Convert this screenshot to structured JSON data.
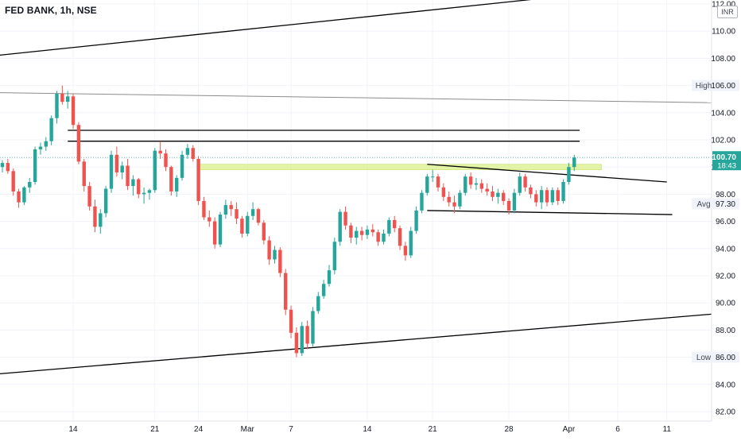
{
  "header": {
    "title": "FED BANK, 1h, NSE",
    "currency": "INR"
  },
  "colors": {
    "up": "#26a69a",
    "down": "#ef5350",
    "grid": "#f0f3fa",
    "trendline": "#000000",
    "upper_channel": "#8c8c8c",
    "zone_fill": "#d9f08a",
    "current_price_bg": "#26a69a",
    "axis_text": "#131722"
  },
  "chart_data": {
    "type": "candlestick",
    "title": "FED BANK, 1h, NSE",
    "ylim": [
      81.5,
      113.5
    ],
    "grid": true,
    "y_ticks": [
      "82.00",
      "84.00",
      "86.00",
      "88.00",
      "90.00",
      "92.00",
      "94.00",
      "96.00",
      "98.00",
      "100.00",
      "102.00",
      "104.00",
      "106.00",
      "108.00",
      "110.00",
      "112.00"
    ],
    "x_ticks": [
      "14",
      "21",
      "24",
      "Mar",
      "7",
      "14",
      "21",
      "28",
      "Apr",
      "6",
      "11"
    ],
    "x_tick_index": [
      13,
      28,
      36,
      45,
      53,
      67,
      79,
      93,
      104,
      113,
      122
    ],
    "labels": {
      "high": {
        "name": "High",
        "value": "106.00"
      },
      "avg": {
        "name": "Avg",
        "value": "97.30"
      },
      "low": {
        "name": "Low",
        "value": "86.00"
      },
      "current": {
        "value": "100.70",
        "countdown": "18:43"
      }
    },
    "candles": [
      [
        100.0,
        100.5,
        99.6,
        100.3
      ],
      [
        100.3,
        100.6,
        99.5,
        99.7
      ],
      [
        99.7,
        99.9,
        97.9,
        98.2
      ],
      [
        98.2,
        98.4,
        97.0,
        97.4
      ],
      [
        97.4,
        98.6,
        97.2,
        98.5
      ],
      [
        98.5,
        99.2,
        98.1,
        98.9
      ],
      [
        98.9,
        101.5,
        98.7,
        101.3
      ],
      [
        101.3,
        101.8,
        100.9,
        101.5
      ],
      [
        101.5,
        102.2,
        101.2,
        101.9
      ],
      [
        101.9,
        103.8,
        101.6,
        103.6
      ],
      [
        103.6,
        105.6,
        103.2,
        105.4
      ],
      [
        105.4,
        106.0,
        104.6,
        104.8
      ],
      [
        104.8,
        105.6,
        104.3,
        105.2
      ],
      [
        105.2,
        105.4,
        102.8,
        103.1
      ],
      [
        103.1,
        103.3,
        100.2,
        100.4
      ],
      [
        100.4,
        100.6,
        98.2,
        98.6
      ],
      [
        98.6,
        98.9,
        96.8,
        97.1
      ],
      [
        97.1,
        97.6,
        95.2,
        95.6
      ],
      [
        95.6,
        96.9,
        95.1,
        96.6
      ],
      [
        96.6,
        98.6,
        96.3,
        98.4
      ],
      [
        98.4,
        101.2,
        98.1,
        100.9
      ],
      [
        100.9,
        101.5,
        99.3,
        99.6
      ],
      [
        99.6,
        100.4,
        99.1,
        100.1
      ],
      [
        100.1,
        100.6,
        98.3,
        98.6
      ],
      [
        98.6,
        99.4,
        97.9,
        99.1
      ],
      [
        99.1,
        99.2,
        97.7,
        98.0
      ],
      [
        98.0,
        98.5,
        97.3,
        98.1
      ],
      [
        98.1,
        98.4,
        97.6,
        98.3
      ],
      [
        98.3,
        101.4,
        98.1,
        101.2
      ],
      [
        101.2,
        101.9,
        100.6,
        101.0
      ],
      [
        101.0,
        101.3,
        99.7,
        100.0
      ],
      [
        100.0,
        100.1,
        97.9,
        98.2
      ],
      [
        98.2,
        99.4,
        97.8,
        99.2
      ],
      [
        99.2,
        101.2,
        99.0,
        100.9
      ],
      [
        100.9,
        101.7,
        100.6,
        101.4
      ],
      [
        101.4,
        101.6,
        100.4,
        100.6
      ],
      [
        100.6,
        100.8,
        97.2,
        97.5
      ],
      [
        97.5,
        97.8,
        96.1,
        96.3
      ],
      [
        96.3,
        96.8,
        95.6,
        96.0
      ],
      [
        96.0,
        96.3,
        94.0,
        94.3
      ],
      [
        94.3,
        96.7,
        94.1,
        96.5
      ],
      [
        96.5,
        97.6,
        96.2,
        97.2
      ],
      [
        97.2,
        97.5,
        96.4,
        96.9
      ],
      [
        96.9,
        97.4,
        95.8,
        96.2
      ],
      [
        96.2,
        96.4,
        94.8,
        95.1
      ],
      [
        95.1,
        96.7,
        94.9,
        96.4
      ],
      [
        96.4,
        97.4,
        96.1,
        96.9
      ],
      [
        96.9,
        97.0,
        95.7,
        95.9
      ],
      [
        95.9,
        96.1,
        94.3,
        94.6
      ],
      [
        94.6,
        94.9,
        92.8,
        93.2
      ],
      [
        93.2,
        94.2,
        92.9,
        93.9
      ],
      [
        93.9,
        94.1,
        91.9,
        92.2
      ],
      [
        92.2,
        92.5,
        89.1,
        89.5
      ],
      [
        89.5,
        89.8,
        87.4,
        87.8
      ],
      [
        87.8,
        88.2,
        86.0,
        86.3
      ],
      [
        86.3,
        88.6,
        86.1,
        88.3
      ],
      [
        88.3,
        88.7,
        86.6,
        87.0
      ],
      [
        87.0,
        89.7,
        86.8,
        89.4
      ],
      [
        89.4,
        90.8,
        89.2,
        90.5
      ],
      [
        90.5,
        91.7,
        90.3,
        91.4
      ],
      [
        91.4,
        92.8,
        91.2,
        92.4
      ],
      [
        92.4,
        94.8,
        92.1,
        94.5
      ],
      [
        94.5,
        96.9,
        94.2,
        96.7
      ],
      [
        96.7,
        97.1,
        95.4,
        95.7
      ],
      [
        95.7,
        95.9,
        94.4,
        94.8
      ],
      [
        94.8,
        95.6,
        94.3,
        95.3
      ],
      [
        95.3,
        95.6,
        94.6,
        95.0
      ],
      [
        95.0,
        95.7,
        94.7,
        95.4
      ],
      [
        95.4,
        95.8,
        94.9,
        95.2
      ],
      [
        95.2,
        95.4,
        94.2,
        94.5
      ],
      [
        94.5,
        95.4,
        94.3,
        95.1
      ],
      [
        95.1,
        96.3,
        94.9,
        96.1
      ],
      [
        96.1,
        96.4,
        95.2,
        95.5
      ],
      [
        95.5,
        95.7,
        93.9,
        94.2
      ],
      [
        94.2,
        94.5,
        93.1,
        93.5
      ],
      [
        93.5,
        95.6,
        93.3,
        95.3
      ],
      [
        95.3,
        97.1,
        95.1,
        96.8
      ],
      [
        96.8,
        98.3,
        96.6,
        98.1
      ],
      [
        98.1,
        99.5,
        97.9,
        99.3
      ],
      [
        99.3,
        99.8,
        98.9,
        99.3
      ],
      [
        99.3,
        99.5,
        98.2,
        98.5
      ],
      [
        98.5,
        98.8,
        97.5,
        97.8
      ],
      [
        97.8,
        98.2,
        97.1,
        97.4
      ],
      [
        97.4,
        97.9,
        96.6,
        97.1
      ],
      [
        97.1,
        98.3,
        96.9,
        98.1
      ],
      [
        98.1,
        99.5,
        97.9,
        99.3
      ],
      [
        99.3,
        99.6,
        98.4,
        98.7
      ],
      [
        98.7,
        99.2,
        98.3,
        98.8
      ],
      [
        98.8,
        99.1,
        98.1,
        98.4
      ],
      [
        98.4,
        98.8,
        97.9,
        98.2
      ],
      [
        98.2,
        98.6,
        97.5,
        97.8
      ],
      [
        97.8,
        98.4,
        97.3,
        98.1
      ],
      [
        98.1,
        98.3,
        97.2,
        97.5
      ],
      [
        97.5,
        97.7,
        96.5,
        96.8
      ],
      [
        96.8,
        98.4,
        96.6,
        98.1
      ],
      [
        98.1,
        99.6,
        97.9,
        99.3
      ],
      [
        99.3,
        99.5,
        98.2,
        98.5
      ],
      [
        98.5,
        98.7,
        97.7,
        98.0
      ],
      [
        98.0,
        98.3,
        97.1,
        97.4
      ],
      [
        97.4,
        98.6,
        96.9,
        98.3
      ],
      [
        98.3,
        98.5,
        97.1,
        97.4
      ],
      [
        97.4,
        98.5,
        97.2,
        98.3
      ],
      [
        98.3,
        98.5,
        97.2,
        97.5
      ],
      [
        97.5,
        99.1,
        97.3,
        98.9
      ],
      [
        98.9,
        100.3,
        98.7,
        100.0
      ],
      [
        100.0,
        100.9,
        99.7,
        100.7
      ]
    ],
    "trendlines": [
      {
        "name": "upper-channel",
        "color": "#000000",
        "i1": -6,
        "p1": 108.0,
        "i2": 125,
        "p2": 113.5
      },
      {
        "name": "upper-gray-line",
        "color": "#8c8c8c",
        "i1": -6,
        "p1": 105.5,
        "i2": 137,
        "p2": 104.7
      },
      {
        "name": "resistance-line-1",
        "color": "#000000",
        "i1": 12,
        "p1": 102.7,
        "i2": 106,
        "p2": 102.7
      },
      {
        "name": "resistance-line-2",
        "color": "#000000",
        "i1": 12,
        "p1": 101.9,
        "i2": 106,
        "p2": 101.9
      },
      {
        "name": "triangle-top",
        "color": "#000000",
        "i1": 78,
        "p1": 100.2,
        "i2": 122,
        "p2": 98.9
      },
      {
        "name": "triangle-bottom",
        "color": "#000000",
        "i1": 78,
        "p1": 96.8,
        "i2": 123,
        "p2": 96.5
      },
      {
        "name": "lower-channel",
        "color": "#000000",
        "i1": -6,
        "p1": 84.6,
        "i2": 137,
        "p2": 89.4
      }
    ],
    "zone": {
      "i1": 36,
      "i2": 110,
      "top": 100.2,
      "bottom": 99.8
    }
  }
}
